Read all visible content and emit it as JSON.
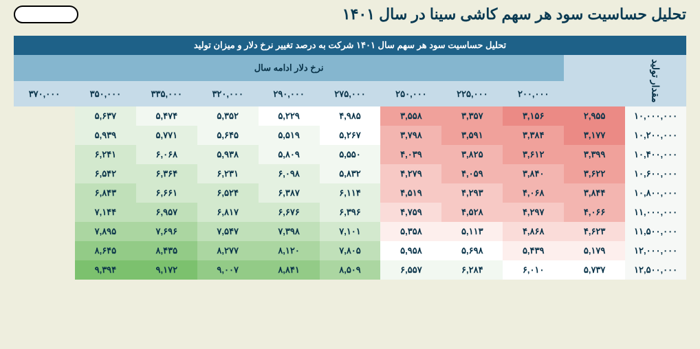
{
  "title": "تحلیل حساسیت سود هر سهم کاشی سینا در سال ۱۴۰۱",
  "table": {
    "header_main": "تحلیل حساسیت سود هر سهم سال ۱۴۰۱  شرکت به درصد تغییر نرخ دلار و میزان تولید",
    "header_cols_title": "نرخ دلار ادامه سال",
    "side_label": "مقدار تولید",
    "col_headers": [
      "۲۰۰,۰۰۰",
      "۲۲۵,۰۰۰",
      "۲۵۰,۰۰۰",
      "۲۷۵,۰۰۰",
      "۲۹۰,۰۰۰",
      "۳۲۰,۰۰۰",
      "۳۳۵,۰۰۰",
      "۳۵۰,۰۰۰",
      "۳۷۰,۰۰۰"
    ],
    "rows": [
      {
        "label": "۱۰,۰۰۰,۰۰۰",
        "cells": [
          {
            "v": "۲,۹۵۵",
            "c": "r5"
          },
          {
            "v": "۳,۱۵۶",
            "c": "r5"
          },
          {
            "v": "۳,۳۵۷",
            "c": "r4"
          },
          {
            "v": "۳,۵۵۸",
            "c": "r4"
          },
          {
            "v": "۴,۹۸۵",
            "c": "n0"
          },
          {
            "v": "۵,۲۲۹",
            "c": "n0"
          },
          {
            "v": "۵,۳۵۲",
            "c": "g0"
          },
          {
            "v": "۵,۴۷۴",
            "c": "g0"
          },
          {
            "v": "۵,۶۳۷",
            "c": "g1"
          }
        ]
      },
      {
        "label": "۱۰,۲۰۰,۰۰۰",
        "cells": [
          {
            "v": "۳,۱۷۷",
            "c": "r5"
          },
          {
            "v": "۳,۳۸۴",
            "c": "r4"
          },
          {
            "v": "۳,۵۹۱",
            "c": "r4"
          },
          {
            "v": "۳,۷۹۸",
            "c": "r3"
          },
          {
            "v": "۵,۲۶۷",
            "c": "n0"
          },
          {
            "v": "۵,۵۱۹",
            "c": "g0"
          },
          {
            "v": "۵,۶۴۵",
            "c": "g0"
          },
          {
            "v": "۵,۷۷۱",
            "c": "g1"
          },
          {
            "v": "۵,۹۳۹",
            "c": "g1"
          }
        ]
      },
      {
        "label": "۱۰,۴۰۰,۰۰۰",
        "cells": [
          {
            "v": "۳,۳۹۹",
            "c": "r4"
          },
          {
            "v": "۳,۶۱۲",
            "c": "r4"
          },
          {
            "v": "۳,۸۲۵",
            "c": "r3"
          },
          {
            "v": "۴,۰۳۹",
            "c": "r3"
          },
          {
            "v": "۵,۵۵۰",
            "c": "g0"
          },
          {
            "v": "۵,۸۰۹",
            "c": "g0"
          },
          {
            "v": "۵,۹۳۸",
            "c": "g1"
          },
          {
            "v": "۶,۰۶۸",
            "c": "g1"
          },
          {
            "v": "۶,۲۴۱",
            "c": "g2"
          }
        ]
      },
      {
        "label": "۱۰,۶۰۰,۰۰۰",
        "cells": [
          {
            "v": "۳,۶۲۲",
            "c": "r4"
          },
          {
            "v": "۳,۸۴۰",
            "c": "r3"
          },
          {
            "v": "۴,۰۵۹",
            "c": "r3"
          },
          {
            "v": "۴,۲۷۹",
            "c": "r2"
          },
          {
            "v": "۵,۸۳۲",
            "c": "g0"
          },
          {
            "v": "۶,۰۹۸",
            "c": "g1"
          },
          {
            "v": "۶,۲۳۱",
            "c": "g1"
          },
          {
            "v": "۶,۳۶۴",
            "c": "g2"
          },
          {
            "v": "۶,۵۴۲",
            "c": "g2"
          }
        ]
      },
      {
        "label": "۱۰,۸۰۰,۰۰۰",
        "cells": [
          {
            "v": "۳,۸۴۴",
            "c": "r3"
          },
          {
            "v": "۴,۰۶۸",
            "c": "r3"
          },
          {
            "v": "۴,۲۹۳",
            "c": "r2"
          },
          {
            "v": "۴,۵۱۹",
            "c": "r2"
          },
          {
            "v": "۶,۱۱۴",
            "c": "g1"
          },
          {
            "v": "۶,۳۸۷",
            "c": "g1"
          },
          {
            "v": "۶,۵۲۴",
            "c": "g2"
          },
          {
            "v": "۶,۶۶۱",
            "c": "g2"
          },
          {
            "v": "۶,۸۴۳",
            "c": "g3"
          }
        ]
      },
      {
        "label": "۱۱,۰۰۰,۰۰۰",
        "cells": [
          {
            "v": "۴,۰۶۶",
            "c": "r3"
          },
          {
            "v": "۴,۲۹۷",
            "c": "r2"
          },
          {
            "v": "۴,۵۲۸",
            "c": "r2"
          },
          {
            "v": "۴,۷۵۹",
            "c": "r1"
          },
          {
            "v": "۶,۳۹۶",
            "c": "g1"
          },
          {
            "v": "۶,۶۷۶",
            "c": "g2"
          },
          {
            "v": "۶,۸۱۷",
            "c": "g2"
          },
          {
            "v": "۶,۹۵۷",
            "c": "g3"
          },
          {
            "v": "۷,۱۴۴",
            "c": "g3"
          }
        ]
      },
      {
        "label": "۱۱,۵۰۰,۰۰۰",
        "cells": [
          {
            "v": "۴,۶۲۳",
            "c": "r1"
          },
          {
            "v": "۴,۸۶۸",
            "c": "r1"
          },
          {
            "v": "۵,۱۱۳",
            "c": "r0"
          },
          {
            "v": "۵,۳۵۸",
            "c": "r0"
          },
          {
            "v": "۷,۱۰۱",
            "c": "g2"
          },
          {
            "v": "۷,۳۹۸",
            "c": "g3"
          },
          {
            "v": "۷,۵۴۷",
            "c": "g3"
          },
          {
            "v": "۷,۶۹۶",
            "c": "g4"
          },
          {
            "v": "۷,۸۹۵",
            "c": "g4"
          }
        ]
      },
      {
        "label": "۱۲,۰۰۰,۰۰۰",
        "cells": [
          {
            "v": "۵,۱۷۹",
            "c": "r0"
          },
          {
            "v": "۵,۴۳۹",
            "c": "r0"
          },
          {
            "v": "۵,۶۹۸",
            "c": "n0"
          },
          {
            "v": "۵,۹۵۸",
            "c": "n0"
          },
          {
            "v": "۷,۸۰۵",
            "c": "g3"
          },
          {
            "v": "۸,۱۲۰",
            "c": "g4"
          },
          {
            "v": "۸,۲۷۷",
            "c": "g4"
          },
          {
            "v": "۸,۴۳۵",
            "c": "g5"
          },
          {
            "v": "۸,۶۴۵",
            "c": "g5"
          }
        ]
      },
      {
        "label": "۱۲,۵۰۰,۰۰۰",
        "cells": [
          {
            "v": "۵,۷۳۷",
            "c": "n0"
          },
          {
            "v": "۶,۰۱۰",
            "c": "n0"
          },
          {
            "v": "۶,۲۸۴",
            "c": "g0"
          },
          {
            "v": "۶,۵۵۷",
            "c": "g0"
          },
          {
            "v": "۸,۵۰۹",
            "c": "g4"
          },
          {
            "v": "۸,۸۴۱",
            "c": "g5"
          },
          {
            "v": "۹,۰۰۷",
            "c": "g5"
          },
          {
            "v": "۹,۱۷۲",
            "c": "g6"
          },
          {
            "v": "۹,۳۹۴",
            "c": "g6"
          }
        ]
      }
    ]
  }
}
